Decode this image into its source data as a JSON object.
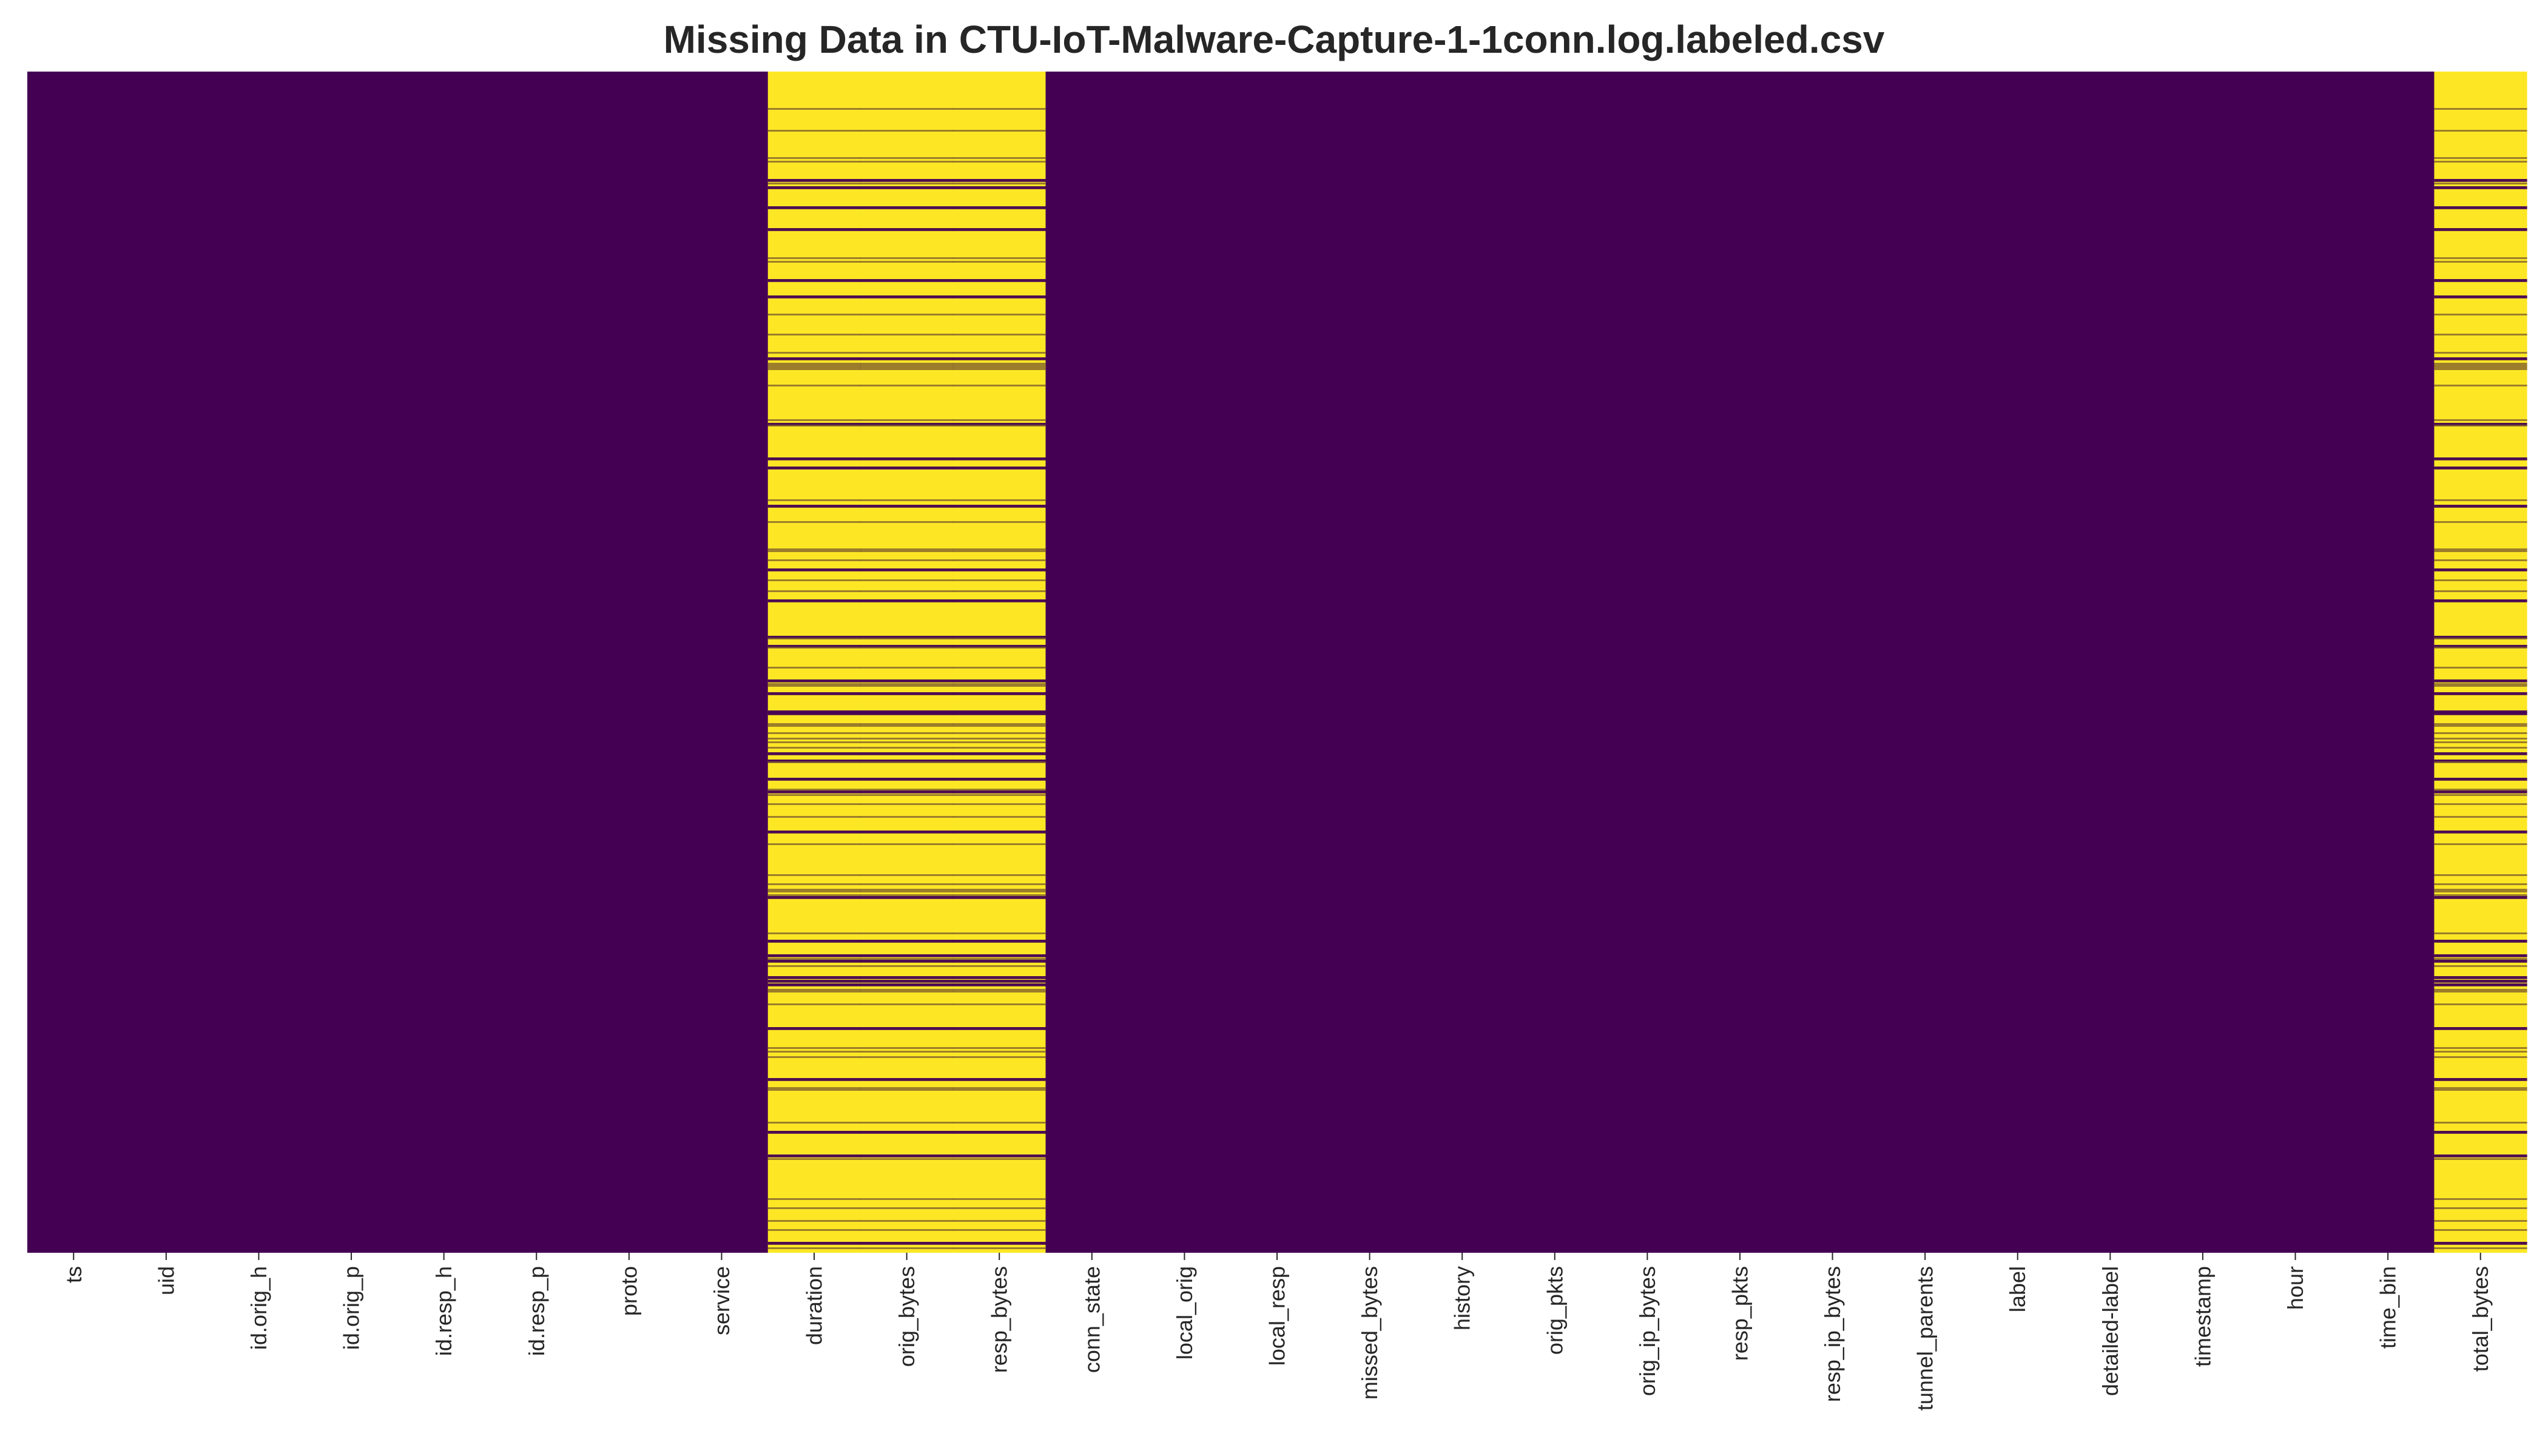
{
  "chart_data": {
    "type": "heatmap",
    "title": "Missing Data in CTU-IoT-Malware-Capture-1-1conn.log.labeled.csv",
    "xlabel": "",
    "ylabel": "",
    "columns": [
      "ts",
      "uid",
      "id.orig_h",
      "id.orig_p",
      "id.resp_h",
      "id.resp_p",
      "proto",
      "service",
      "duration",
      "orig_bytes",
      "resp_bytes",
      "conn_state",
      "local_orig",
      "local_resp",
      "missed_bytes",
      "history",
      "orig_pkts",
      "orig_ip_bytes",
      "resp_pkts",
      "resp_ip_bytes",
      "tunnel_parents",
      "label",
      "detailed-label",
      "timestamp",
      "hour",
      "time_bin",
      "total_bytes"
    ],
    "missing_fraction": [
      0,
      0,
      0,
      0,
      0,
      0,
      0,
      0,
      0.83,
      0.83,
      0.83,
      0,
      0,
      0,
      0,
      0,
      0,
      0,
      0,
      0,
      0,
      0,
      0,
      0,
      0,
      0,
      0.83
    ],
    "value_meaning": {
      "present": "dark purple",
      "missing": "yellow"
    },
    "colors": {
      "present": "#440154",
      "missing": "#fde725",
      "edge": "#7a5a2e"
    },
    "colorbar": false,
    "grid": false
  }
}
